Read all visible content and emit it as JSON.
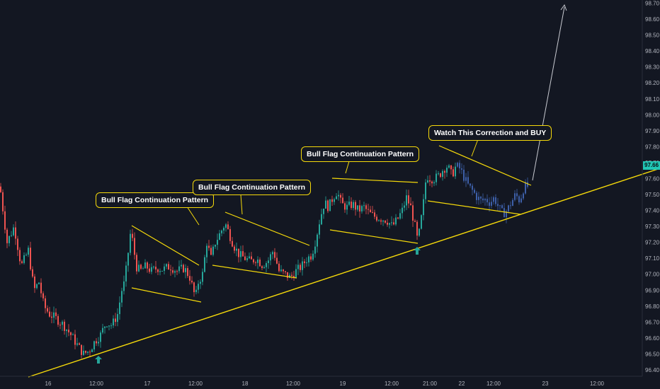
{
  "chart_data": {
    "type": "candlestick",
    "title": "",
    "y_axis": {
      "ticks": [
        "98.70",
        "98.60",
        "98.50",
        "98.40",
        "98.30",
        "98.20",
        "98.10",
        "98.00",
        "97.90",
        "97.80",
        "97.70",
        "97.60",
        "97.50",
        "97.40",
        "97.30",
        "97.20",
        "97.10",
        "97.00",
        "96.90",
        "96.80",
        "96.70",
        "96.60",
        "96.50",
        "96.40"
      ],
      "range": [
        96.36,
        98.72
      ],
      "current_price": "97.66"
    },
    "x_axis": {
      "ticks": [
        "16",
        "12:00",
        "17",
        "12:00",
        "18",
        "12:00",
        "19",
        "12:00",
        "21:00",
        "22",
        "12:00",
        "23",
        "12:00"
      ]
    },
    "annotations": {
      "flag1": "Bull Flag Continuation Pattern",
      "flag2": "Bull Flag Continuation Pattern",
      "flag3": "Bull Flag Continuation Pattern",
      "watch": "Watch This Correction and BUY"
    },
    "colors": {
      "background": "#131722",
      "up": "#26a69a",
      "down": "#ef5350",
      "projection": "#3d5fa8",
      "trendline": "#f5d90a",
      "axis_text": "#b2b5be",
      "price_tag": "#21c7b5"
    },
    "anchors": [
      [
        0,
        97.55
      ],
      [
        10,
        97.2
      ],
      [
        20,
        97.3
      ],
      [
        30,
        97.05
      ],
      [
        40,
        97.15
      ],
      [
        48,
        96.9
      ],
      [
        55,
        96.95
      ],
      [
        62,
        96.8
      ],
      [
        70,
        96.75
      ],
      [
        80,
        96.72
      ],
      [
        90,
        96.68
      ],
      [
        100,
        96.62
      ],
      [
        110,
        96.55
      ],
      [
        118,
        96.5
      ],
      [
        126,
        96.52
      ],
      [
        134,
        96.58
      ],
      [
        142,
        96.62
      ],
      [
        150,
        96.7
      ],
      [
        158,
        96.68
      ],
      [
        166,
        96.75
      ],
      [
        172,
        96.9
      ],
      [
        176,
        96.95
      ],
      [
        180,
        97.1
      ],
      [
        184,
        97.25
      ],
      [
        188,
        97.2
      ],
      [
        192,
        97.05
      ],
      [
        198,
        97.02
      ],
      [
        206,
        97.05
      ],
      [
        214,
        97.02
      ],
      [
        222,
        97.04
      ],
      [
        230,
        97.03
      ],
      [
        240,
        97.05
      ],
      [
        250,
        97.02
      ],
      [
        260,
        97.04
      ],
      [
        268,
        96.98
      ],
      [
        276,
        96.85
      ],
      [
        280,
        96.95
      ],
      [
        286,
        97.0
      ],
      [
        292,
        97.2
      ],
      [
        298,
        97.1
      ],
      [
        304,
        97.2
      ],
      [
        310,
        97.25
      ],
      [
        318,
        97.32
      ],
      [
        324,
        97.25
      ],
      [
        330,
        97.18
      ],
      [
        338,
        97.12
      ],
      [
        346,
        97.1
      ],
      [
        354,
        97.08
      ],
      [
        362,
        97.1
      ],
      [
        370,
        97.06
      ],
      [
        378,
        97.08
      ],
      [
        386,
        97.15
      ],
      [
        394,
        97.02
      ],
      [
        402,
        97.0
      ],
      [
        410,
        96.98
      ],
      [
        418,
        97.02
      ],
      [
        426,
        97.05
      ],
      [
        434,
        97.1
      ],
      [
        440,
        97.12
      ],
      [
        446,
        97.22
      ],
      [
        452,
        97.35
      ],
      [
        458,
        97.45
      ],
      [
        464,
        97.42
      ],
      [
        470,
        97.48
      ],
      [
        476,
        97.52
      ],
      [
        482,
        97.44
      ],
      [
        490,
        97.42
      ],
      [
        498,
        97.44
      ],
      [
        506,
        97.4
      ],
      [
        514,
        97.42
      ],
      [
        522,
        97.38
      ],
      [
        530,
        97.36
      ],
      [
        538,
        97.35
      ],
      [
        546,
        97.34
      ],
      [
        554,
        97.3
      ],
      [
        562,
        97.35
      ],
      [
        568,
        97.4
      ],
      [
        574,
        97.48
      ],
      [
        580,
        97.42
      ],
      [
        586,
        97.3
      ],
      [
        590,
        97.2
      ],
      [
        594,
        97.32
      ],
      [
        598,
        97.45
      ],
      [
        602,
        97.62
      ],
      [
        608,
        97.6
      ],
      [
        614,
        97.6
      ],
      [
        620,
        97.62
      ],
      [
        626,
        97.66
      ],
      [
        632,
        97.68
      ],
      [
        638,
        97.62
      ],
      [
        644,
        97.68
      ],
      [
        650,
        97.66
      ],
      [
        656,
        97.6
      ],
      [
        662,
        97.55
      ],
      [
        668,
        97.52
      ],
      [
        674,
        97.48
      ],
      [
        680,
        97.46
      ],
      [
        686,
        97.47
      ],
      [
        692,
        97.45
      ],
      [
        698,
        97.48
      ],
      [
        704,
        97.42
      ],
      [
        710,
        97.38
      ],
      [
        716,
        97.4
      ],
      [
        722,
        97.45
      ],
      [
        728,
        97.5
      ],
      [
        734,
        97.46
      ],
      [
        740,
        97.55
      ],
      [
        748,
        97.55
      ]
    ]
  }
}
